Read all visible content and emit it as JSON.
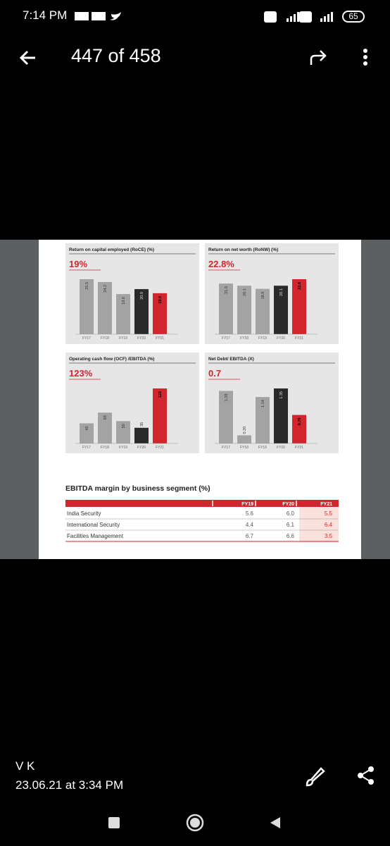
{
  "status_bar": {
    "time": "7:14 PM",
    "battery": "65"
  },
  "header": {
    "counter": "447 of 458"
  },
  "chart_data": [
    {
      "type": "bar",
      "title": "Return on capital employed (RoCE) (%)",
      "headline": "19%",
      "categories": [
        "FY17",
        "FY18",
        "FY19",
        "FY20",
        "FY21"
      ],
      "values": [
        25.5,
        24.2,
        18.6,
        20.9,
        19.0
      ],
      "value_labels": [
        "25.5",
        "24.2",
        "18.6",
        "20.9",
        "19.0"
      ],
      "colors": [
        "#a3a3a3",
        "#a3a3a3",
        "#a3a3a3",
        "#2a2a2a",
        "#d1262e"
      ]
    },
    {
      "type": "bar",
      "title": "Return on net worth (RoNW) (%)",
      "headline": "22.8%",
      "categories": [
        "FY17",
        "FY18",
        "FY19",
        "FY20",
        "FY21"
      ],
      "values": [
        21.0,
        20.1,
        18.8,
        20.1,
        22.8
      ],
      "value_labels": [
        "21.0",
        "20.1",
        "18.8",
        "20.1",
        "22.8"
      ],
      "colors": [
        "#a3a3a3",
        "#a3a3a3",
        "#a3a3a3",
        "#2a2a2a",
        "#d1262e"
      ]
    },
    {
      "type": "bar",
      "title": "Operating cash flow (OCF) /EBITDA (%)",
      "headline": "123%",
      "categories": [
        "FY17",
        "FY18",
        "FY19",
        "FY20",
        "FY21"
      ],
      "values": [
        45,
        69,
        50,
        35,
        123
      ],
      "colors": [
        "#a3a3a3",
        "#a3a3a3",
        "#a3a3a3",
        "#2a2a2a",
        "#d1262e"
      ]
    },
    {
      "type": "bar",
      "title": "Net Debt/ EBITDA (X)",
      "headline": "0.7",
      "categories": [
        "FY17",
        "FY18",
        "FY19",
        "FY20",
        "FY21"
      ],
      "values": [
        1.29,
        0.2,
        1.14,
        1.35,
        0.7
      ],
      "value_labels": [
        "1.29",
        "0.20",
        "1.14",
        "1.35",
        "0.70"
      ],
      "colors": [
        "#a3a3a3",
        "#a3a3a3",
        "#a3a3a3",
        "#2a2a2a",
        "#d1262e"
      ]
    }
  ],
  "table": {
    "title": "EBITDA margin by business segment (%)",
    "columns": [
      "FY19",
      "FY20",
      "FY21"
    ],
    "rows": [
      [
        "India Security",
        "5.6",
        "6.0",
        "5.5"
      ],
      [
        "International Security",
        "4.4",
        "6.1",
        "6.4"
      ],
      [
        "Facilities Management",
        "6.7",
        "6.6",
        "3.5"
      ]
    ]
  },
  "footer": {
    "author": "V K",
    "date": "23.06.21 at 3:34 PM"
  }
}
